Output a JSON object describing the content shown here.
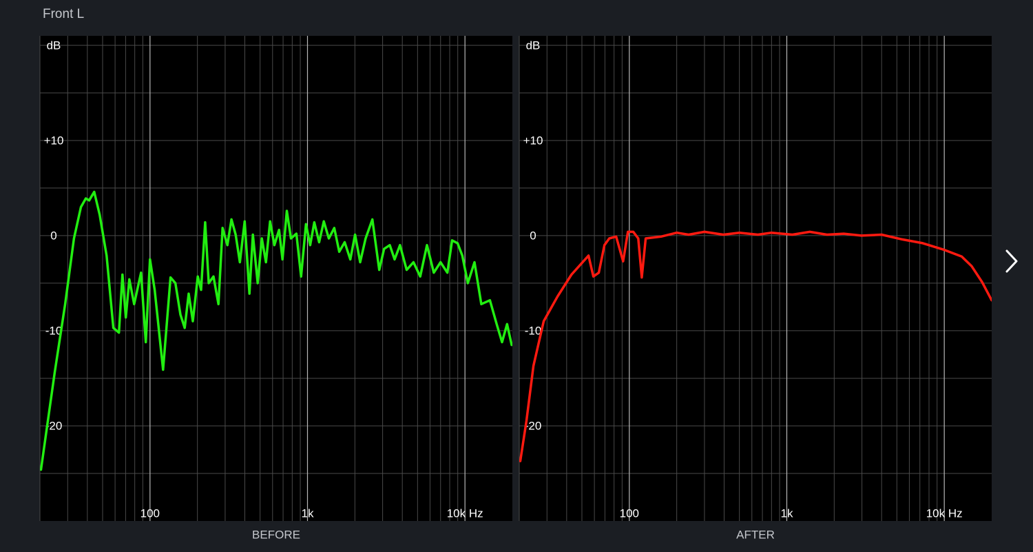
{
  "page_title": "Front L",
  "chart_data": [
    {
      "type": "line",
      "xlabel": "BEFORE",
      "xscale": "log",
      "grid": true,
      "xlim": [
        20,
        20000
      ],
      "ylim": [
        -30,
        21
      ],
      "xticks": [
        100,
        {
          "value": 1000,
          "label": "1k"
        },
        {
          "value": 10000,
          "label": "10k Hz"
        }
      ],
      "xminor": [
        20,
        30,
        40,
        50,
        60,
        70,
        80,
        90,
        200,
        300,
        400,
        500,
        600,
        700,
        800,
        900,
        2000,
        3000,
        4000,
        5000,
        6000,
        7000,
        8000,
        9000
      ],
      "yticks": [
        {
          "value": 20,
          "label": "dB"
        },
        {
          "value": 10,
          "label": "+10"
        },
        0,
        -10,
        -20
      ],
      "yminor": [
        15,
        5,
        -5,
        -15,
        -25
      ],
      "color": "#22ee11",
      "x": [
        20.3,
        24.8,
        28.9,
        32.9,
        36.4,
        39.1,
        41.1,
        44.2,
        47.9,
        53,
        58.5,
        63.5,
        66.8,
        70.2,
        73.9,
        79.3,
        87.7,
        94,
        100,
        107,
        121,
        135,
        145,
        156,
        166,
        176,
        187,
        201,
        211,
        224,
        236,
        253,
        272,
        289,
        310,
        329,
        350,
        372,
        399,
        428,
        450,
        483,
        513,
        545,
        579,
        616,
        660,
        694,
        739,
        785,
        850,
        911,
        978,
        1040,
        1105,
        1186,
        1270,
        1366,
        1480,
        1590,
        1723,
        1870,
        2005,
        2160,
        2340,
        2583,
        2857,
        3065,
        3330,
        3575,
        3865,
        4265,
        4710,
        5200,
        5740,
        6340,
        7000,
        7730,
        8290,
        8970,
        9620,
        10420,
        11500,
        12700,
        14400,
        15900,
        17200,
        18500,
        19800
      ],
      "values": [
        -24.6,
        -14.4,
        -7.2,
        -0.3,
        3.0,
        3.9,
        3.7,
        4.6,
        2.2,
        -2.1,
        -9.7,
        -10.2,
        -4.1,
        -8.6,
        -4.6,
        -7.2,
        -3.9,
        -11.2,
        -2.5,
        -5.7,
        -14.1,
        -4.4,
        -5,
        -8.3,
        -9.7,
        -6.1,
        -9,
        -4.3,
        -5.7,
        1.4,
        -5,
        -4.3,
        -7.2,
        0.8,
        -1,
        1.7,
        0.1,
        -2.8,
        1.5,
        -6.1,
        0.1,
        -5,
        -0.3,
        -2.8,
        1.5,
        -1,
        0.6,
        -2.5,
        2.6,
        -0.3,
        0.2,
        -4.3,
        1.2,
        -1,
        1.4,
        -0.7,
        1.5,
        -0.3,
        0.8,
        -1.7,
        -0.7,
        -2.5,
        0.1,
        -2.8,
        -0.3,
        1.7,
        -3.6,
        -1.4,
        -1,
        -2.5,
        -1,
        -3.6,
        -2.8,
        -4.3,
        -1,
        -3.9,
        -2.8,
        -3.9,
        -0.5,
        -0.8,
        -2.1,
        -5,
        -2.8,
        -7.2,
        -6.8,
        -9.3,
        -11.2,
        -9.3,
        -11.5
      ]
    },
    {
      "type": "line",
      "xlabel": "AFTER",
      "xscale": "log",
      "grid": true,
      "xlim": [
        20,
        20000
      ],
      "ylim": [
        -30,
        21
      ],
      "xticks": [
        100,
        {
          "value": 1000,
          "label": "1k"
        },
        {
          "value": 10000,
          "label": "10k Hz"
        }
      ],
      "xminor": [
        20,
        30,
        40,
        50,
        60,
        70,
        80,
        90,
        200,
        300,
        400,
        500,
        600,
        700,
        800,
        900,
        2000,
        3000,
        4000,
        5000,
        6000,
        7000,
        8000,
        9000
      ],
      "yticks": [
        {
          "value": 20,
          "label": "dB"
        },
        {
          "value": 10,
          "label": "+10"
        },
        0,
        -10,
        -20
      ],
      "yminor": [
        15,
        5,
        -5,
        -15,
        -25
      ],
      "color": "#ff1a10",
      "x": [
        20.3,
        22.2,
        24.6,
        28.6,
        35,
        42.9,
        55.1,
        59.1,
        64,
        69.5,
        74.6,
        82.5,
        91.3,
        98,
        106,
        114,
        120,
        127,
        159,
        200,
        238,
        300,
        395,
        500,
        655,
        800,
        1085,
        1400,
        1800,
        2300,
        2980,
        4000,
        5410,
        7300,
        10000,
        12900,
        14900,
        17400,
        20000
      ],
      "values": [
        -23.7,
        -19.5,
        -13.7,
        -9,
        -6.4,
        -4.1,
        -2.1,
        -4.3,
        -3.9,
        -1,
        -0.3,
        -0.1,
        -2.7,
        0.4,
        0.4,
        -0.3,
        -4.4,
        -0.3,
        -0.1,
        0.3,
        0.1,
        0.4,
        0.1,
        0.3,
        0.1,
        0.3,
        0.1,
        0.4,
        0.1,
        0.2,
        0,
        0.1,
        -0.4,
        -0.8,
        -1.5,
        -2.2,
        -3.2,
        -4.9,
        -6.8
      ]
    }
  ]
}
